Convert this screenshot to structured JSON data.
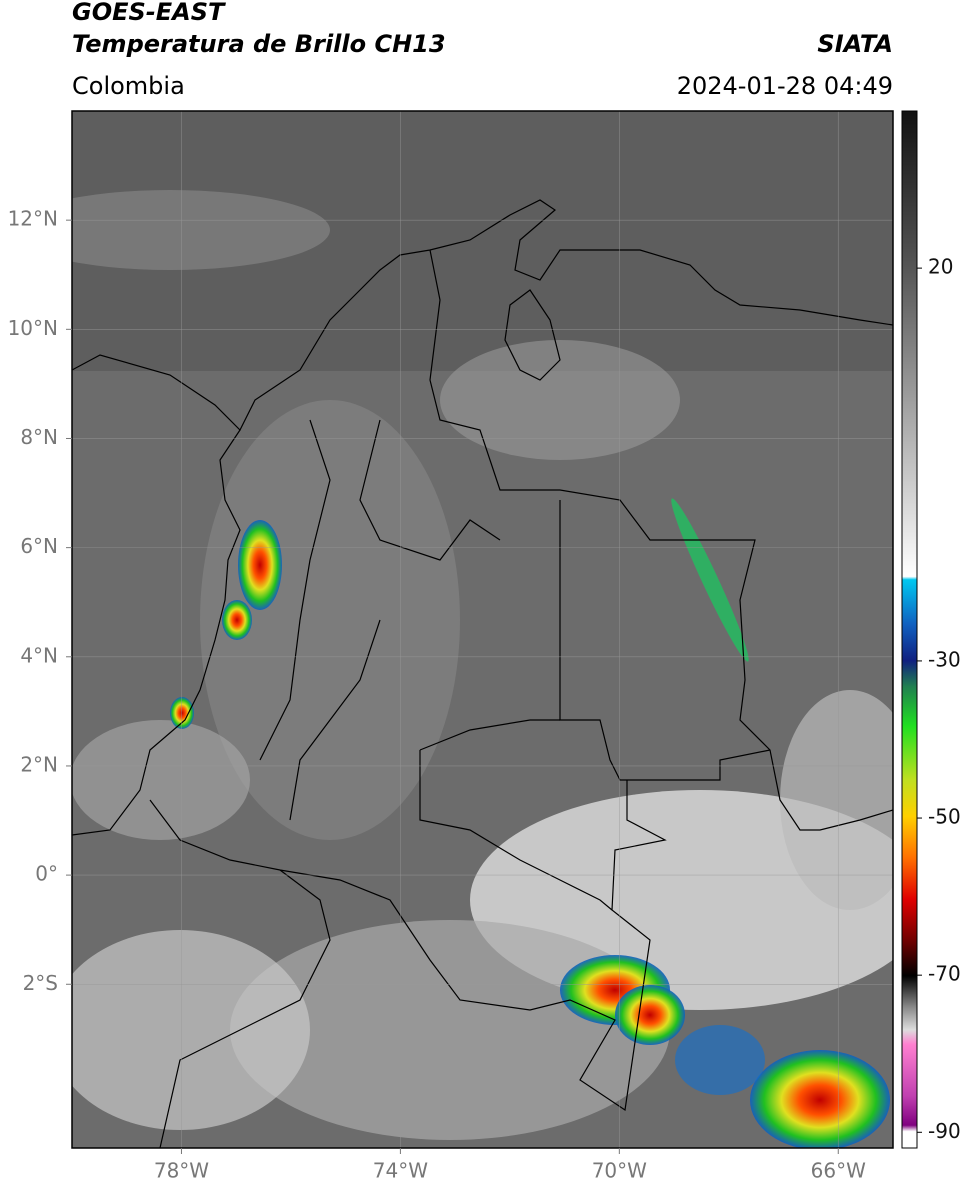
{
  "header": {
    "satellite": "GOES-EAST",
    "product": "Temperatura de Brillo CH13",
    "source": "SIATA",
    "region": "Colombia",
    "datetime": "2024-01-28 04:49"
  },
  "map": {
    "xlim": [
      -80,
      -65
    ],
    "ylim": [
      -5,
      14
    ],
    "xticks": [
      {
        "value": -78,
        "label": "78°W"
      },
      {
        "value": -74,
        "label": "74°W"
      },
      {
        "value": -70,
        "label": "70°W"
      },
      {
        "value": -66,
        "label": "66°W"
      }
    ],
    "yticks": [
      {
        "value": 12,
        "label": "12°N"
      },
      {
        "value": 10,
        "label": "10°N"
      },
      {
        "value": 8,
        "label": "8°N"
      },
      {
        "value": 6,
        "label": "6°N"
      },
      {
        "value": 4,
        "label": "4°N"
      },
      {
        "value": 2,
        "label": "2°N"
      },
      {
        "value": 0,
        "label": "0°"
      },
      {
        "value": -2,
        "label": "2°S"
      }
    ],
    "grid": true
  },
  "colorbar": {
    "lim": [
      -92,
      40
    ],
    "ticks": [
      20,
      -30,
      -50,
      -70,
      -90
    ]
  }
}
